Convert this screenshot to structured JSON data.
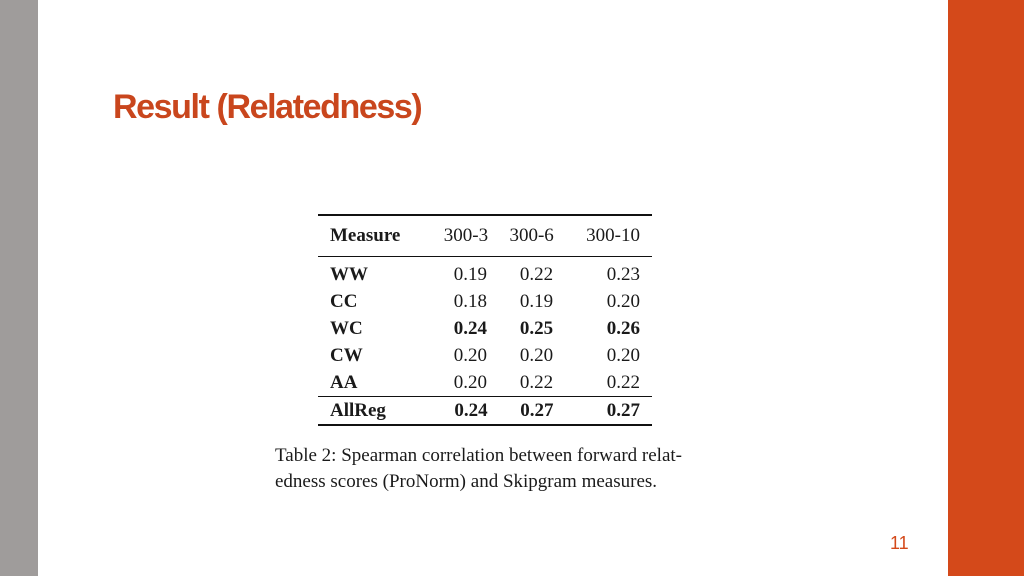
{
  "slide": {
    "title": "Result (Relatedness)",
    "page_number": "11",
    "accent_color": "#d4491a",
    "side_bar_color": "#9f9c9b"
  },
  "table": {
    "headers": [
      "Measure",
      "300-3",
      "300-6",
      "300-10"
    ],
    "rows": [
      {
        "measure": "WW",
        "values": [
          "0.19",
          "0.22",
          "0.23"
        ],
        "bold": [
          false,
          false,
          false
        ]
      },
      {
        "measure": "CC",
        "values": [
          "0.18",
          "0.19",
          "0.20"
        ],
        "bold": [
          false,
          false,
          false
        ]
      },
      {
        "measure": "WC",
        "values": [
          "0.24",
          "0.25",
          "0.26"
        ],
        "bold": [
          true,
          true,
          true
        ]
      },
      {
        "measure": "CW",
        "values": [
          "0.20",
          "0.20",
          "0.20"
        ],
        "bold": [
          false,
          false,
          false
        ]
      },
      {
        "measure": "AA",
        "values": [
          "0.20",
          "0.22",
          "0.22"
        ],
        "bold": [
          false,
          false,
          false
        ]
      }
    ],
    "summary_row": {
      "measure": "AllReg",
      "values": [
        "0.24",
        "0.27",
        "0.27"
      ],
      "bold": [
        true,
        true,
        true
      ]
    },
    "caption_lines": [
      "Table 2: Spearman correlation between forward relat-",
      "edness scores (ProNorm) and Skipgram measures."
    ]
  }
}
